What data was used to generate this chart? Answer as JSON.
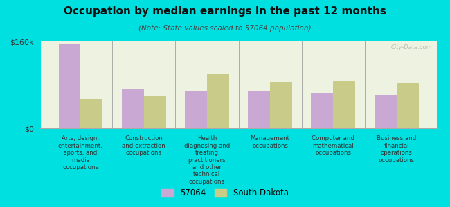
{
  "title": "Occupation by median earnings in the past 12 months",
  "subtitle": "(Note: State values scaled to 57064 population)",
  "background_color": "#00e0e0",
  "plot_bg_color": "#eef2e0",
  "bar_color_57064": "#c9a8d4",
  "bar_color_sd": "#c8cc88",
  "ylim": [
    0,
    160000
  ],
  "ytick_labels": [
    "$0",
    "$160k"
  ],
  "categories": [
    "Arts, design,\nentertainment,\nsports, and\nmedia\noccupations",
    "Construction\nand extraction\noccupations",
    "Health\ndiagnosing and\ntreating\npractitioners\nand other\ntechnical\noccupations",
    "Management\noccupations",
    "Computer and\nmathematical\noccupations",
    "Business and\nfinancial\noperations\noccupations"
  ],
  "values_57064": [
    155000,
    72000,
    68000,
    68000,
    65000,
    62000
  ],
  "values_sd": [
    55000,
    60000,
    100000,
    85000,
    88000,
    82000
  ],
  "legend_labels": [
    "57064",
    "South Dakota"
  ],
  "watermark": "City-Data.com"
}
